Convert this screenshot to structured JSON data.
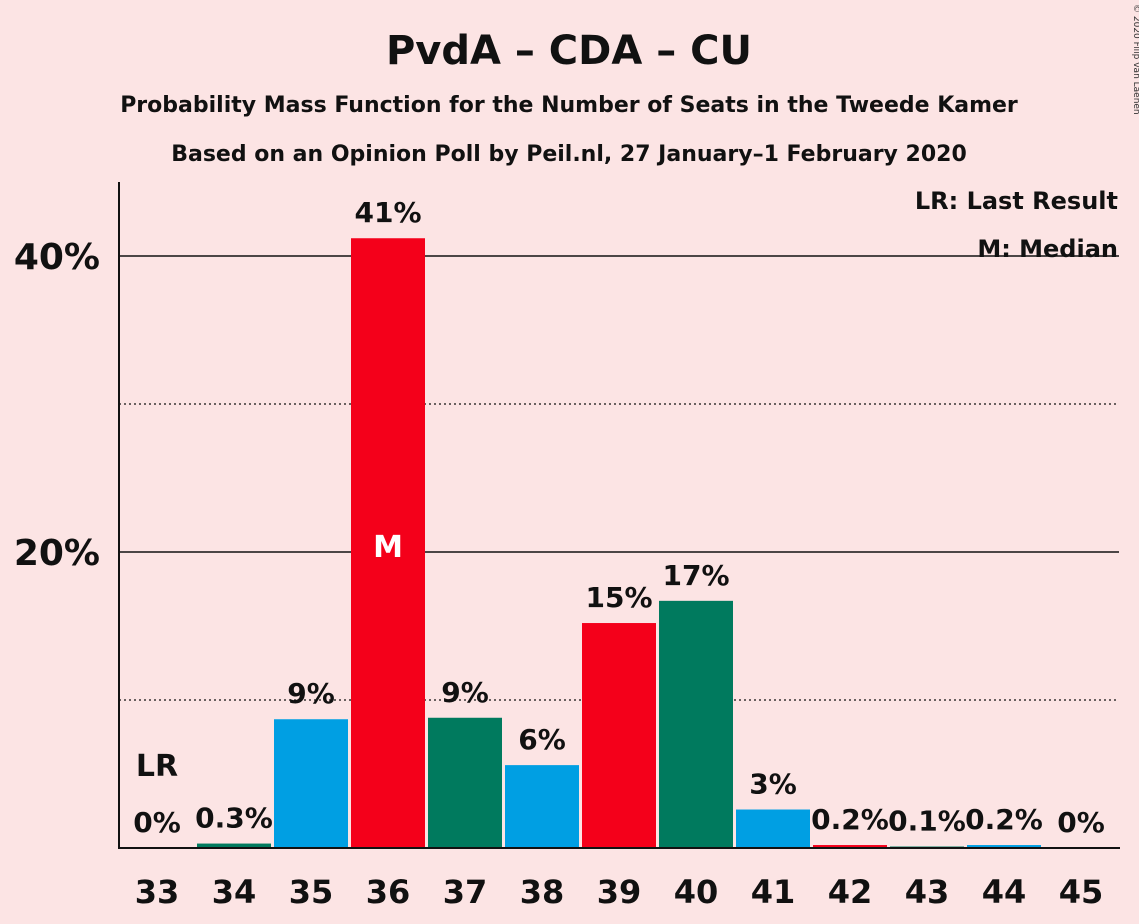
{
  "chart_data": {
    "type": "bar",
    "title": "PvdA – CDA – CU",
    "subtitle": "Probability Mass Function for the Number of Seats in the Tweede Kamer",
    "subtitle2": "Based on an Opinion Poll by Peil.nl, 27 January–1 February 2020",
    "copyright": "© 2020 Filip van Laenen",
    "categories": [
      "33",
      "34",
      "35",
      "36",
      "37",
      "38",
      "39",
      "40",
      "41",
      "42",
      "43",
      "44",
      "45"
    ],
    "values": [
      0,
      0.3,
      8.7,
      41.2,
      8.8,
      5.6,
      15.2,
      16.7,
      2.6,
      0.2,
      0.1,
      0.2,
      0
    ],
    "labels": [
      "0%",
      "0.3%",
      "9%",
      "41%",
      "9%",
      "6%",
      "15%",
      "17%",
      "3%",
      "0.2%",
      "0.1%",
      "0.2%",
      "0%"
    ],
    "bar_colors": [
      "#009FE3",
      "#007A5E",
      "#009FE3",
      "#F4001A",
      "#007A5E",
      "#009FE3",
      "#F4001A",
      "#007A5E",
      "#009FE3",
      "#F4001A",
      "#007A5E",
      "#009FE3",
      "#F4001A"
    ],
    "ylim": [
      0,
      45
    ],
    "yticks": [
      {
        "value": 20,
        "label": "20%"
      },
      {
        "value": 40,
        "label": "40%"
      }
    ],
    "minor_gridlines": [
      10,
      30
    ],
    "median_index": 3,
    "median_label": "M",
    "last_result_index": 0,
    "last_result_label": "LR",
    "legend": [
      "LR: Last Result",
      "M: Median"
    ],
    "legend_position": "top-right"
  }
}
